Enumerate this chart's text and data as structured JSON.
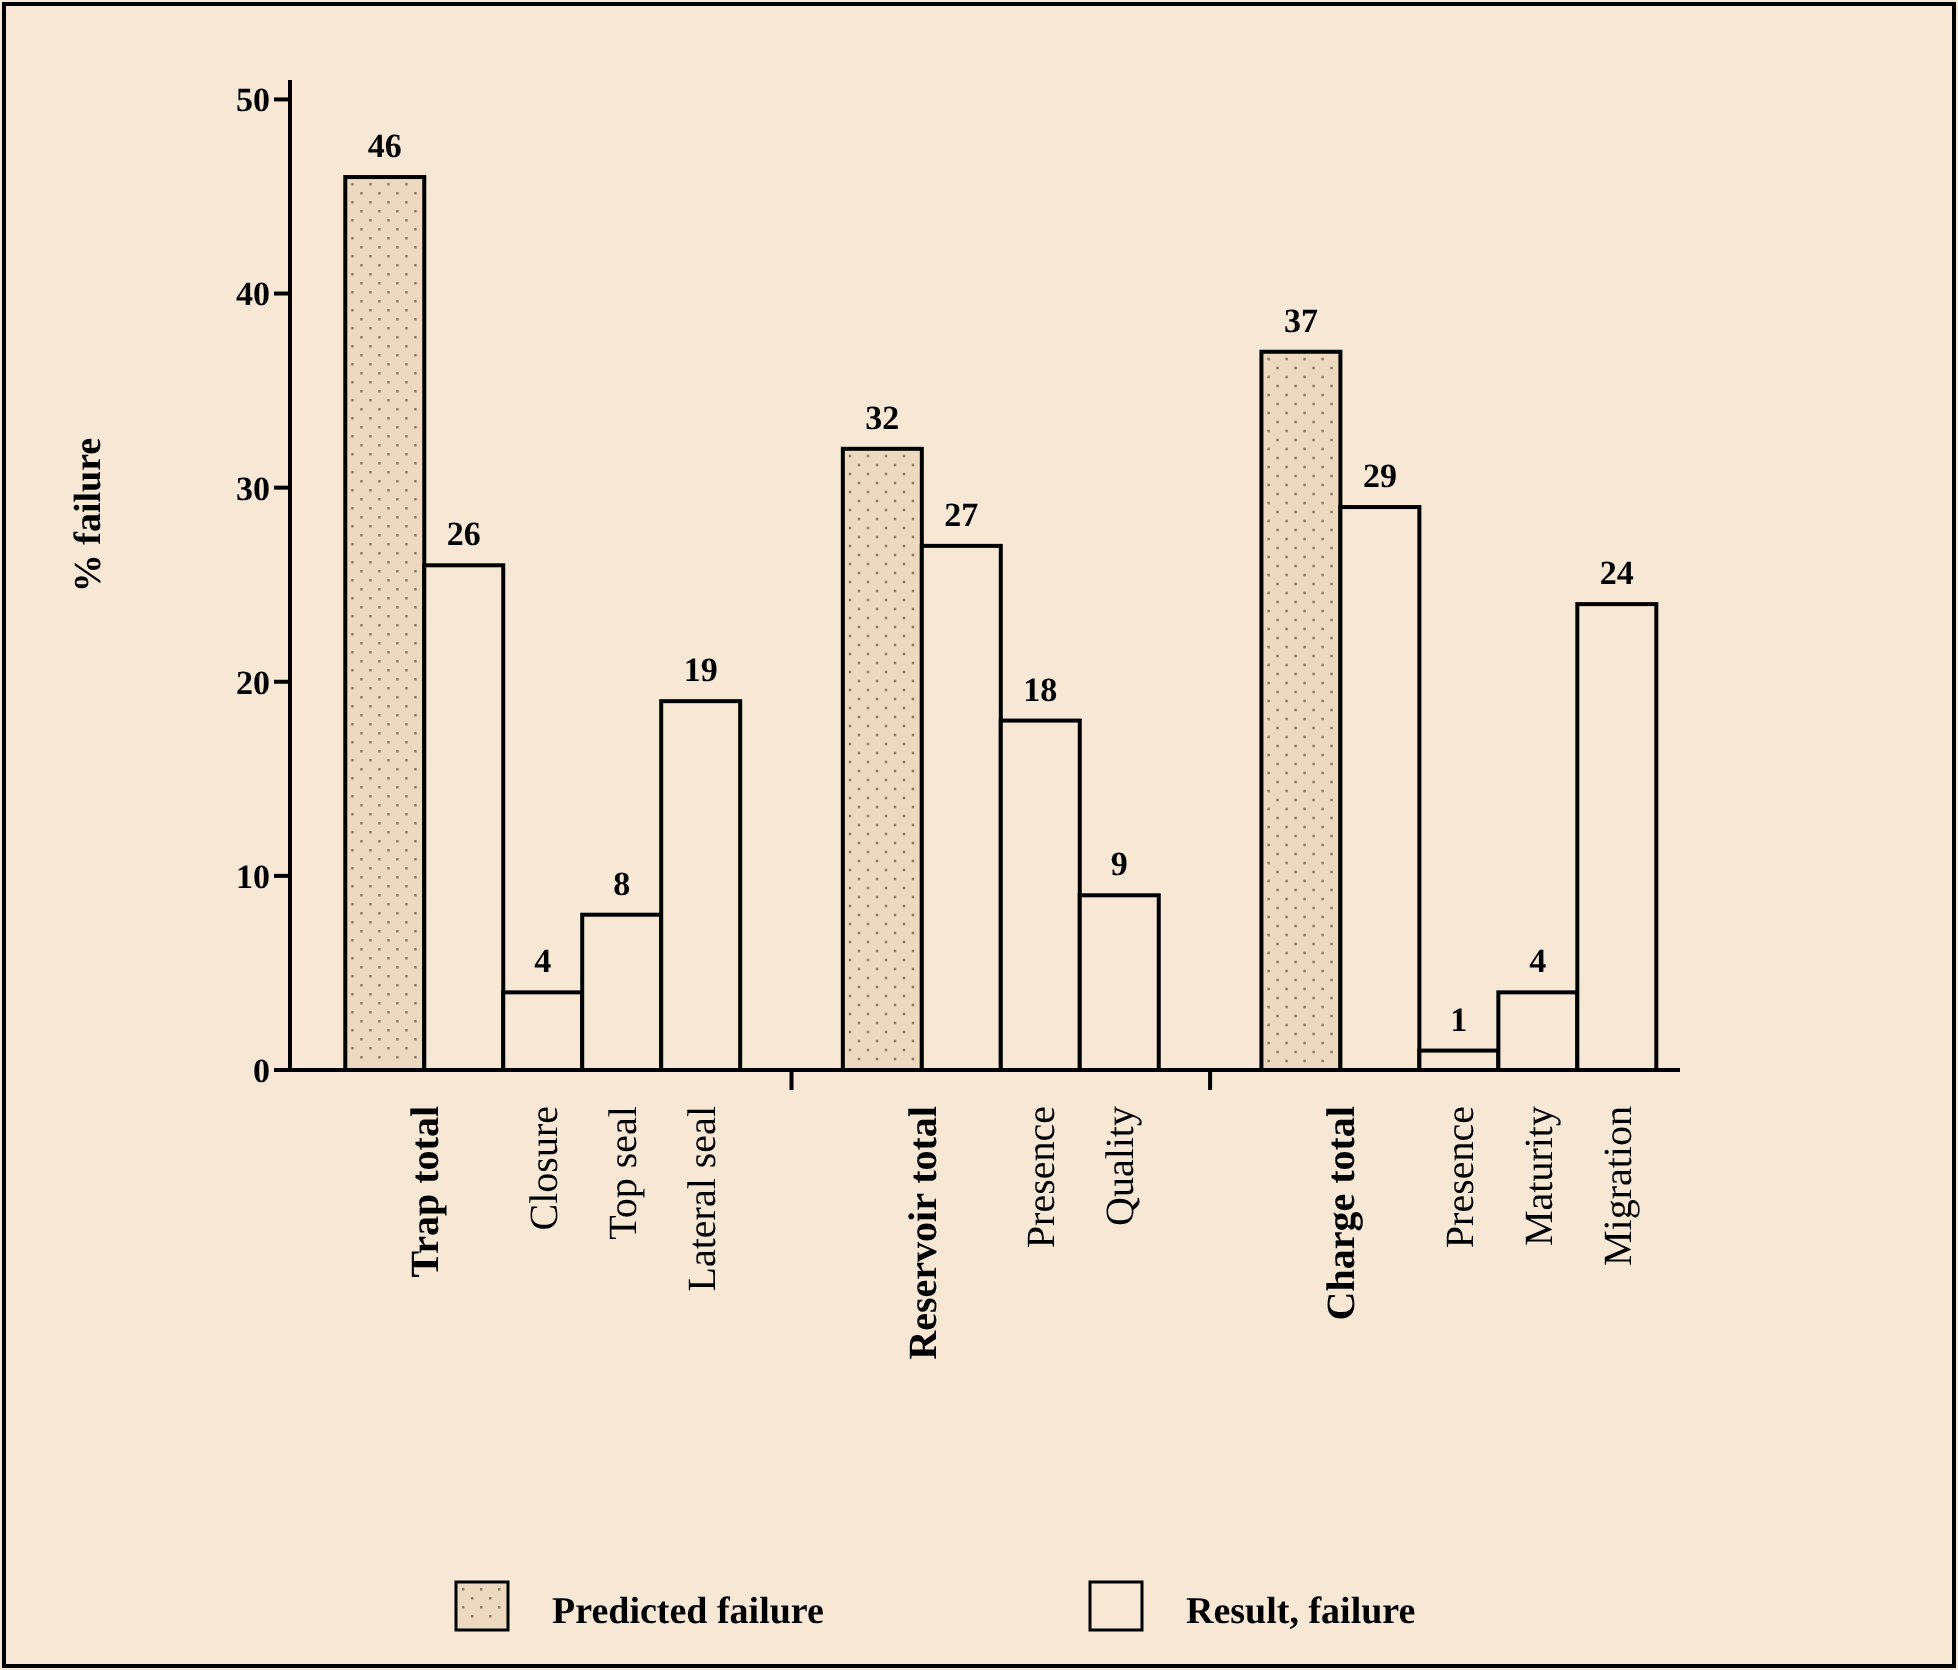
{
  "chart_data": {
    "type": "bar",
    "ylabel": "% failure",
    "categories": [
      "Trap total",
      "Closure",
      "Top seal",
      "Lateral seal",
      "Reservoir total",
      "Presence",
      "Quality",
      "Charge total",
      "Presence",
      "Maturity",
      "Migration"
    ],
    "series": [
      {
        "name": "Predicted failure",
        "color": "#ecd9bf",
        "values": [
          46,
          null,
          null,
          null,
          32,
          null,
          null,
          37,
          null,
          null,
          null
        ]
      },
      {
        "name": "Result, failure",
        "color": "#f6e8d4",
        "values": [
          26,
          4,
          8,
          19,
          27,
          18,
          9,
          29,
          1,
          4,
          24
        ]
      }
    ],
    "ylim": [
      0,
      51
    ],
    "yticks": [
      0,
      10,
      20,
      30,
      40,
      50
    ],
    "data_labels": true,
    "legend": "bottom"
  }
}
